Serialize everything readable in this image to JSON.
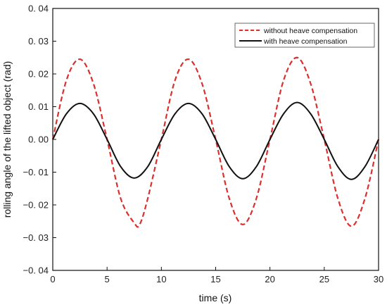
{
  "chart_data": {
    "type": "line",
    "title": "",
    "xlabel": "time (s)",
    "ylabel": "rolling angle of the lifted object (rad)",
    "xlim": [
      0,
      30
    ],
    "ylim": [
      -0.04,
      0.04
    ],
    "x_ticks": [
      0,
      5,
      10,
      15,
      20,
      25,
      30
    ],
    "y_ticks": [
      0.04,
      0.03,
      0.02,
      0.01,
      0.0,
      -0.01,
      -0.02,
      -0.03,
      -0.04
    ],
    "x_tick_labels": [
      "0",
      "5",
      "10",
      "15",
      "20",
      "25",
      "30"
    ],
    "y_tick_labels": [
      "0. 04",
      "0. 03",
      "0. 02",
      "0. 01",
      "0. 00",
      "−0. 01",
      "−0. 02",
      "−0. 03",
      "−0. 04"
    ],
    "grid": false,
    "legend_position": "top-right",
    "series": [
      {
        "name": "without heave compensation",
        "color": "#d93030",
        "style": "dashed",
        "x": [
          0,
          1.25,
          2.5,
          3.75,
          5,
          6.25,
          7.5,
          8,
          8.75,
          10,
          11.25,
          12.5,
          13.75,
          15,
          16.25,
          17.5,
          18.75,
          20,
          21.25,
          22.5,
          23.75,
          25,
          26.25,
          27.5,
          28.75,
          30
        ],
        "y": [
          0.0,
          0.018,
          0.0245,
          0.017,
          0.0,
          -0.018,
          -0.0255,
          -0.026,
          -0.018,
          0.0,
          0.018,
          0.0245,
          0.017,
          0.0,
          -0.018,
          -0.026,
          -0.018,
          0.0,
          0.018,
          0.025,
          0.017,
          0.0,
          -0.018,
          -0.0265,
          -0.018,
          0.0
        ]
      },
      {
        "name": "with heave compensation",
        "color": "#111111",
        "style": "solid",
        "x": [
          0,
          1.25,
          2.5,
          3.75,
          5,
          6.25,
          7.5,
          8.75,
          10,
          11.25,
          12.5,
          13.75,
          15,
          16.25,
          17.5,
          18.75,
          20,
          21.25,
          22.5,
          23.75,
          25,
          26.25,
          27.5,
          28.75,
          30
        ],
        "y": [
          0.0,
          0.0078,
          0.011,
          0.0078,
          0.0,
          -0.0083,
          -0.0118,
          -0.0083,
          0.0,
          0.0078,
          0.011,
          0.0078,
          0.0,
          -0.0083,
          -0.012,
          -0.0083,
          0.0,
          0.0078,
          0.0113,
          0.0078,
          0.0,
          -0.0083,
          -0.0122,
          -0.0083,
          0.0
        ]
      }
    ]
  }
}
